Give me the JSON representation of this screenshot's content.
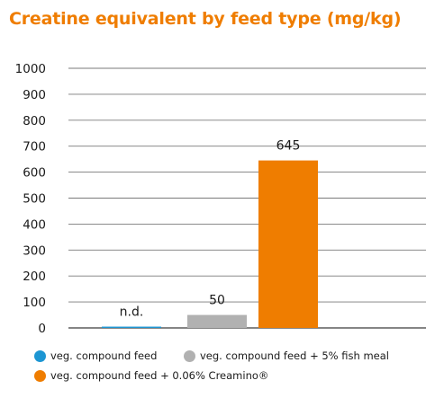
{
  "chart_data": {
    "type": "bar",
    "title": "Creatine equivalent by feed type (mg/kg)",
    "xlabel": "",
    "ylabel": "",
    "ylim": [
      0,
      1000
    ],
    "yticks": [
      "0",
      "100",
      "200",
      "300",
      "400",
      "500",
      "600",
      "700",
      "800",
      "900",
      "1000"
    ],
    "grid": true,
    "legend_position": "bottom",
    "series": [
      {
        "name": "veg. compound feed",
        "value": 5,
        "data_label": "n.d.",
        "color": "#1d96d3"
      },
      {
        "name": "veg. compound feed + 5% fish meal",
        "value": 50,
        "data_label": "50",
        "color": "#b1b1b1"
      },
      {
        "name": "veg. compound feed + 0.06% Creamino®",
        "value": 645,
        "data_label": "645",
        "color": "#ef7d00"
      }
    ]
  }
}
